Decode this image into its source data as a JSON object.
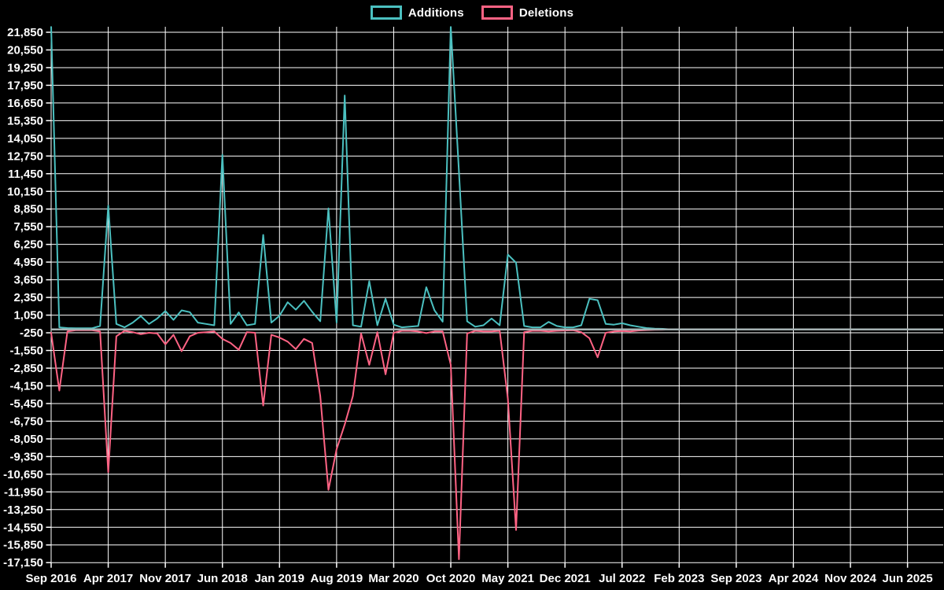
{
  "legend": {
    "items": [
      {
        "label": "Additions",
        "color": "#4bc0c0"
      },
      {
        "label": "Deletions",
        "color": "#ff6384"
      }
    ]
  },
  "chart_data": {
    "type": "line",
    "title": "",
    "x_start_month": "Sep 2016",
    "x_tick_interval_months": 7,
    "x_tick_labels": [
      "Sep 2016",
      "Apr 2017",
      "Nov 2017",
      "Jun 2018",
      "Jan 2019",
      "Aug 2019",
      "Mar 2020",
      "Oct 2020",
      "May 2021",
      "Dec 2021",
      "Jul 2022",
      "Feb 2023",
      "Sep 2023",
      "Apr 2024",
      "Nov 2024",
      "Jun 2025"
    ],
    "y_ticks": [
      21850,
      20550,
      19250,
      17950,
      16650,
      15350,
      14050,
      12750,
      11450,
      10150,
      8850,
      7550,
      6250,
      4950,
      3650,
      2350,
      1050,
      -250,
      -1550,
      -2850,
      -4150,
      -5450,
      -6750,
      -8050,
      -9350,
      -10650,
      -11950,
      -13250,
      -14550,
      -15850,
      -17150
    ],
    "ylim": [
      -17150,
      21850
    ],
    "grid": true,
    "legend_position": "top",
    "colors": {
      "background": "#000000",
      "grid": "#ffffff",
      "text": "#ffffff",
      "baseline": "#a6b3b4",
      "additions": "#4bc0c0",
      "deletions": "#ff6384"
    },
    "series": [
      {
        "name": "Additions",
        "color": "#4bc0c0",
        "values": [
          22300,
          150,
          100,
          80,
          80,
          80,
          250,
          9100,
          400,
          150,
          500,
          980,
          400,
          800,
          1350,
          700,
          1400,
          1270,
          500,
          400,
          300,
          12850,
          400,
          1250,
          300,
          400,
          6950,
          500,
          1000,
          2000,
          1450,
          2100,
          1300,
          600,
          8900,
          500,
          17200,
          300,
          200,
          3550,
          300,
          2250,
          350,
          150,
          200,
          250,
          3100,
          1400,
          570,
          22300,
          11600,
          600,
          200,
          300,
          800,
          300,
          5500,
          4900,
          250,
          150,
          150,
          550,
          250,
          150,
          150,
          300,
          2250,
          2150,
          400,
          350,
          450,
          300,
          200,
          100,
          60,
          40,
          0,
          0,
          0,
          0,
          0,
          0,
          0,
          0,
          0,
          0,
          0,
          0,
          0,
          0,
          0,
          0,
          0,
          0,
          0,
          0,
          0,
          0,
          0,
          0,
          0,
          0,
          0,
          0,
          0,
          0,
          0,
          0,
          0,
          0
        ]
      },
      {
        "name": "Deletions",
        "color": "#ff6384",
        "values": [
          -250,
          -4500,
          -150,
          -60,
          -60,
          -60,
          -150,
          -10500,
          -500,
          -100,
          -200,
          -350,
          -250,
          -300,
          -1100,
          -400,
          -1600,
          -500,
          -250,
          -200,
          -150,
          -700,
          -1000,
          -1500,
          -200,
          -250,
          -5600,
          -400,
          -600,
          -900,
          -1450,
          -700,
          -1000,
          -4900,
          -11800,
          -8800,
          -7000,
          -4900,
          -300,
          -2600,
          -200,
          -3300,
          -250,
          -100,
          -100,
          -150,
          -270,
          -150,
          -150,
          -2600,
          -16900,
          -300,
          -100,
          -150,
          -150,
          -100,
          -5100,
          -14750,
          -200,
          -100,
          -100,
          -150,
          -100,
          -80,
          -60,
          -200,
          -650,
          -2050,
          -250,
          -150,
          -120,
          -150,
          -80,
          -50,
          -30,
          -20,
          0,
          0,
          0,
          0,
          0,
          0,
          0,
          0,
          0,
          0,
          0,
          0,
          0,
          0,
          0,
          0,
          0,
          0,
          0,
          0,
          0,
          0,
          0,
          0,
          0,
          0,
          0,
          0,
          0,
          0,
          0,
          0,
          0,
          0
        ]
      }
    ]
  }
}
